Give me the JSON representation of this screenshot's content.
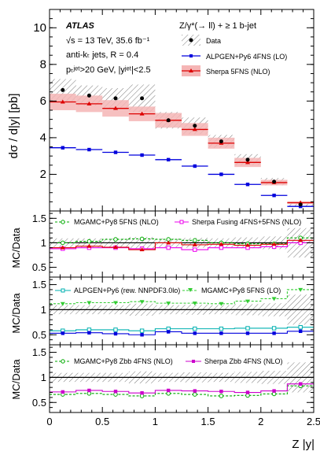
{
  "chart_data": {
    "type": "line",
    "x_label": "Z |y|",
    "x_ticks": [
      0,
      0.5,
      1,
      1.5,
      2,
      2.5
    ],
    "x_tick_labels": [
      "0",
      "0.5",
      "1",
      "1.5",
      "2",
      "2.5"
    ],
    "x_range": [
      0,
      2.5
    ],
    "x_bins": [
      0,
      0.25,
      0.5,
      0.75,
      1.0,
      1.25,
      1.5,
      1.75,
      2.0,
      2.25,
      2.5
    ],
    "x_centers": [
      0.125,
      0.375,
      0.625,
      0.875,
      1.125,
      1.375,
      1.625,
      1.875,
      2.125,
      2.375
    ],
    "main": {
      "y_label": "dσ / d|y| [pb]",
      "y_range": [
        0,
        11
      ],
      "y_ticks": [
        2,
        4,
        6,
        8,
        10
      ],
      "y_tick_labels": [
        "2",
        "4",
        "6",
        "8",
        "10"
      ],
      "atlas_label": "ATLAS",
      "info_lines": [
        "√s = 13 TeV, 35.6 fb⁻¹",
        "anti-kₜ jets, R = 0.4",
        "pₜʲᵉᵗ>20 GeV, |yʲᵉᵗ|<2.5"
      ],
      "process_label": "Z/γ*(→ ll) + ≥ 1 b-jet",
      "legend_position": "top-right",
      "data": {
        "name": "Data",
        "color": "#000000",
        "values": [
          6.6,
          6.3,
          6.15,
          6.15,
          4.95,
          4.65,
          3.8,
          2.8,
          1.6,
          0.35
        ],
        "uncertainty": [
          0.6,
          0.55,
          0.55,
          0.75,
          0.45,
          0.45,
          0.35,
          0.3,
          0.2,
          0.12
        ]
      },
      "series": [
        {
          "name": "ALPGEN+Py6 4FNS (LO)",
          "color": "#0000dd",
          "values": [
            3.45,
            3.35,
            3.2,
            3.05,
            2.8,
            2.45,
            2.0,
            1.45,
            0.85,
            0.25
          ]
        },
        {
          "name": "Sherpa 5FNS (NLO)",
          "color": "#dd0000",
          "band_color": "#f5b5b5",
          "values": [
            5.95,
            5.85,
            5.6,
            5.3,
            4.95,
            4.45,
            3.7,
            2.65,
            1.55,
            0.45
          ],
          "band": [
            0.45,
            0.45,
            0.45,
            0.4,
            0.4,
            0.35,
            0.3,
            0.25,
            0.15,
            0.08
          ]
        }
      ]
    },
    "ratio_panels": [
      {
        "y_label": "MC/Data",
        "y_range": [
          0.3,
          1.65
        ],
        "y_ticks": [
          0.5,
          1,
          1.5
        ],
        "y_tick_labels": [
          "0.5",
          "1",
          "1.5"
        ],
        "data_uncertainty": [
          0.09,
          0.09,
          0.09,
          0.12,
          0.09,
          0.1,
          0.09,
          0.11,
          0.13,
          0.3
        ],
        "series": [
          {
            "name": "MGAMC+Py8 5FNS (NLO)",
            "color": "#00aa00",
            "style": "dashed",
            "marker": "circle-open",
            "values": [
              1.0,
              1.03,
              1.07,
              1.08,
              1.07,
              1.05,
              1.0,
              0.98,
              0.98,
              1.1
            ]
          },
          {
            "name": "Sherpa Fusing 4FNS+5FNS (NLO)",
            "color": "#ee00ee",
            "style": "solid",
            "marker": "square-open",
            "values": [
              0.88,
              0.9,
              0.9,
              0.88,
              0.9,
              0.86,
              0.9,
              0.9,
              0.92,
              1.0
            ]
          },
          {
            "name": "",
            "color": "#dd0000",
            "style": "solid",
            "marker": "triangle",
            "values": [
              0.9,
              0.93,
              0.91,
              0.86,
              1.0,
              0.96,
              0.97,
              0.95,
              0.97,
              1.05
            ]
          }
        ]
      },
      {
        "y_label": "MC/Data",
        "y_range": [
          0.3,
          1.65
        ],
        "y_ticks": [
          0.5,
          1,
          1.5
        ],
        "y_tick_labels": [
          "0.5",
          "1",
          "1.5"
        ],
        "data_uncertainty": [
          0.09,
          0.09,
          0.09,
          0.12,
          0.09,
          0.1,
          0.09,
          0.11,
          0.13,
          0.3
        ],
        "series": [
          {
            "name": "ALPGEN+Py6 (rew. NNPDF3.0lo)",
            "color": "#00b0b0",
            "style": "solid",
            "marker": "square-open",
            "values": [
              0.58,
              0.6,
              0.6,
              0.58,
              0.62,
              0.62,
              0.62,
              0.63,
              0.63,
              0.65
            ]
          },
          {
            "name": "MGAMC+Py8 5FNS (LO)",
            "color": "#33cc33",
            "style": "dashed",
            "marker": "triangle-down",
            "values": [
              1.12,
              1.14,
              1.14,
              1.16,
              1.13,
              1.13,
              1.12,
              1.17,
              1.22,
              1.4
            ]
          },
          {
            "name": "",
            "color": "#0000dd",
            "style": "solid",
            "marker": "square",
            "values": [
              0.53,
              0.54,
              0.52,
              0.5,
              0.56,
              0.53,
              0.53,
              0.53,
              0.53,
              0.57
            ]
          }
        ]
      },
      {
        "y_label": "MC/Data",
        "y_range": [
          0.3,
          1.65
        ],
        "y_ticks": [
          0.5,
          1,
          1.5
        ],
        "y_tick_labels": [
          "0.5",
          "1",
          "1.5"
        ],
        "data_uncertainty": [
          0.09,
          0.09,
          0.09,
          0.12,
          0.09,
          0.1,
          0.09,
          0.11,
          0.13,
          0.3
        ],
        "series": [
          {
            "name": "MGAMC+Py8 Zbb 4FNS (NLO)",
            "color": "#00aa00",
            "style": "dashed",
            "marker": "circle-open",
            "values": [
              0.66,
              0.68,
              0.66,
              0.63,
              0.68,
              0.66,
              0.63,
              0.64,
              0.67,
              0.83
            ]
          },
          {
            "name": "Sherpa Zbb 4FNS (NLO)",
            "color": "#cc00cc",
            "style": "solid",
            "marker": "square",
            "values": [
              0.71,
              0.74,
              0.72,
              0.69,
              0.74,
              0.73,
              0.72,
              0.7,
              0.73,
              0.87
            ]
          }
        ]
      }
    ]
  }
}
